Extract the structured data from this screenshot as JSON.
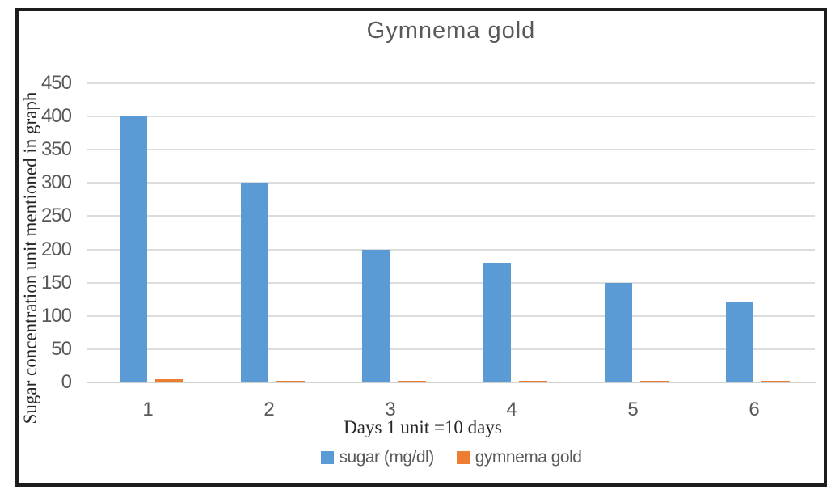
{
  "frame": {
    "border_color": "#1c1c1c",
    "background": "#ffffff"
  },
  "chart_data": {
    "type": "bar",
    "title": "Gymnema gold",
    "xlabel": "Days 1 unit =10 days",
    "ylabel": "Sugar concentration unit mentioned in graph",
    "categories": [
      "1",
      "2",
      "3",
      "4",
      "5",
      "6"
    ],
    "series": [
      {
        "name": "sugar (mg/dl)",
        "color": "#5B9BD5",
        "values": [
          400,
          300,
          200,
          180,
          150,
          120
        ]
      },
      {
        "name": "gymnema gold",
        "color": "#ED7D31",
        "values": [
          5,
          3,
          3,
          3,
          3,
          3
        ]
      }
    ],
    "ylim": [
      0,
      450
    ],
    "yticks": [
      0,
      50,
      100,
      150,
      200,
      250,
      300,
      350,
      400,
      450
    ],
    "grid": true,
    "legend_position": "bottom",
    "title_color": "#595959",
    "tick_label_color": "#595959",
    "axis_title_color": "#262626"
  }
}
